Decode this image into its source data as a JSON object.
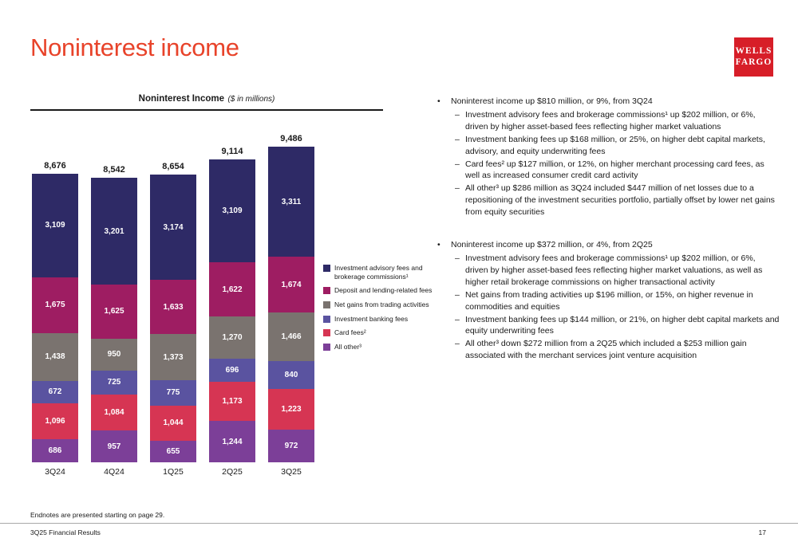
{
  "slide": {
    "title": "Noninterest income",
    "logo": {
      "line1": "WELLS",
      "line2": "FARGO",
      "color": "#d71e28"
    }
  },
  "chart_data": {
    "type": "bar",
    "stacked": true,
    "title": "Noninterest Income",
    "title_note": "($ in millions)",
    "categories": [
      "3Q24",
      "4Q24",
      "1Q25",
      "2Q25",
      "3Q25"
    ],
    "totals": [
      8676,
      8542,
      8654,
      9114,
      9486
    ],
    "ylim": [
      0,
      9486
    ],
    "legend_position": "right",
    "series": [
      {
        "name": "Investment advisory fees and brokerage commissions¹",
        "color": "#2e2a66",
        "values": [
          3109,
          3201,
          3174,
          3109,
          3311
        ]
      },
      {
        "name": "Deposit and lending-related fees",
        "color": "#9e1d62",
        "values": [
          1675,
          1625,
          1633,
          1622,
          1674
        ]
      },
      {
        "name": "Net gains from trading activities",
        "color": "#7a736f",
        "values": [
          1438,
          950,
          1373,
          1270,
          1466
        ]
      },
      {
        "name": "Investment banking fees",
        "color": "#5a53a0",
        "values": [
          672,
          725,
          775,
          696,
          840
        ]
      },
      {
        "name": "Card fees²",
        "color": "#d63553",
        "values": [
          1096,
          1084,
          1044,
          1173,
          1223
        ]
      },
      {
        "name": "All other³",
        "color": "#7c3f98",
        "values": [
          686,
          957,
          655,
          1244,
          972
        ]
      }
    ]
  },
  "commentary": {
    "groups": [
      {
        "heading": "Noninterest income up $810 million, or 9%, from 3Q24",
        "items": [
          "Investment advisory fees and brokerage commissions¹ up $202 million, or 6%, driven by higher asset-based fees reflecting higher market valuations",
          "Investment banking fees up $168 million, or 25%, on higher debt capital markets, advisory, and equity underwriting fees",
          "Card fees² up $127 million, or 12%, on higher merchant processing card fees, as well as increased consumer credit card activity",
          "All other³ up $286 million as 3Q24 included $447 million of net losses due to a repositioning of the investment securities portfolio, partially offset by lower net gains from equity securities"
        ]
      },
      {
        "heading": "Noninterest income up $372 million, or 4%, from 2Q25",
        "items": [
          "Investment advisory fees and brokerage commissions¹ up $202 million, or 6%, driven by higher asset-based fees reflecting higher market valuations, as well as higher retail brokerage commissions on higher transactional activity",
          "Net gains from trading activities up $196 million, or 15%, on higher revenue in commodities and equities",
          "Investment banking fees up $144 million, or 21%, on higher debt capital markets and equity underwriting fees",
          "All other³ down $272 million from a 2Q25 which included a $253 million gain associated with the merchant services joint venture acquisition"
        ]
      }
    ]
  },
  "footer": {
    "endnotes": "Endnotes are presented starting on page 29.",
    "left": "3Q25 Financial Results",
    "page": "17"
  }
}
